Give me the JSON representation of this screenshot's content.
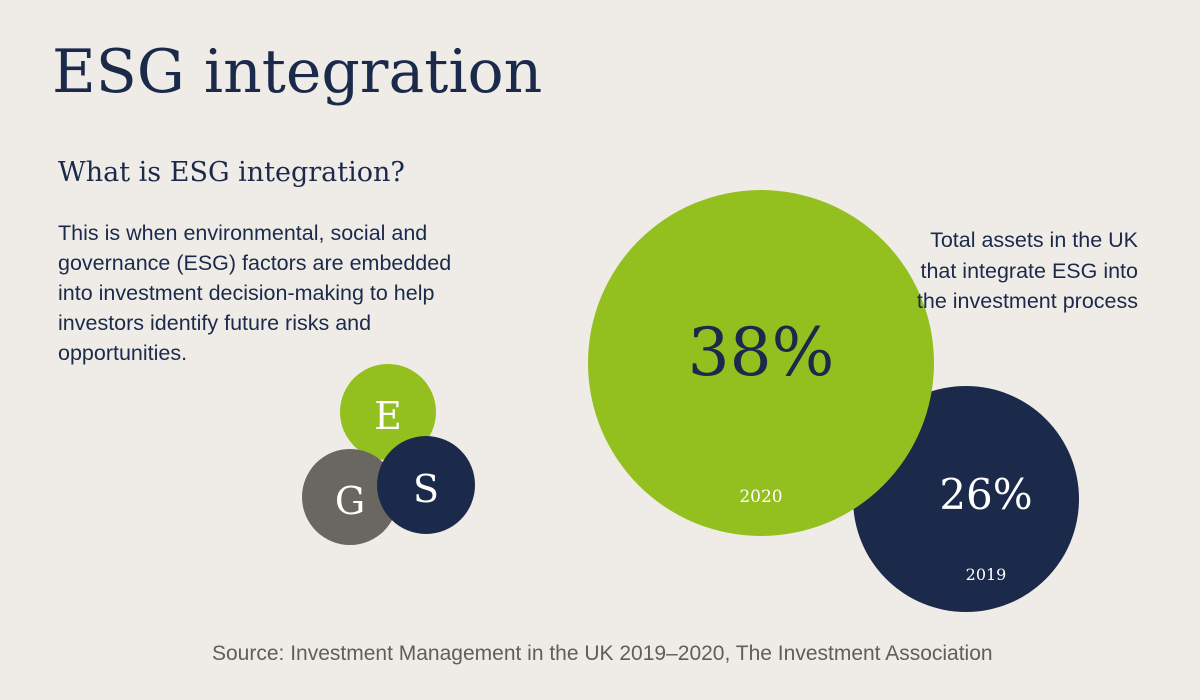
{
  "title": "ESG integration",
  "subtitle": "What is ESG integration?",
  "description": "This is when environmental, social and governance (ESG) factors are embedded into investment decision-making to help investors identify future risks and opportunities.",
  "esg_letters": {
    "e": "E",
    "s": "S",
    "g": "G"
  },
  "stats": {
    "current": {
      "value": "38%",
      "year": "2020"
    },
    "previous": {
      "value": "26%",
      "year": "2019"
    },
    "caption": "Total assets in the UK that integrate ESG into the investment process"
  },
  "source": "Source: Investment Management in the UK 2019–2020, The Investment Association",
  "colors": {
    "background": "#efece8",
    "navy": "#1b2a4a",
    "green": "#93bf1f",
    "grey": "#6a6661"
  }
}
